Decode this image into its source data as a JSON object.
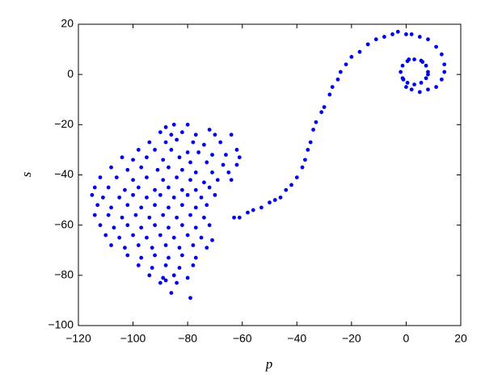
{
  "chart_data": {
    "type": "scatter",
    "x_label": "p",
    "y_label": "s",
    "color": "#0000ee",
    "xlim": [
      -120,
      20
    ],
    "ylim": [
      -100,
      20
    ],
    "xticks": [
      {
        "value": -120,
        "label": "−120"
      },
      {
        "value": -100,
        "label": "−100"
      },
      {
        "value": -80,
        "label": "−80"
      },
      {
        "value": -60,
        "label": "−60"
      },
      {
        "value": -40,
        "label": "−40"
      },
      {
        "value": -20,
        "label": "−20"
      },
      0,
      20
    ],
    "yticks": [
      {
        "value": -100,
        "label": "−100"
      },
      {
        "value": -80,
        "label": "−80"
      },
      {
        "value": -60,
        "label": "−60"
      },
      {
        "value": -40,
        "label": "−40"
      },
      {
        "value": -20,
        "label": "−20"
      },
      0,
      20
    ],
    "x": [
      8,
      7.3,
      5.5,
      3,
      0.5,
      -1.3,
      -2,
      -1.3,
      0.5,
      3,
      5.5,
      7.3,
      6,
      1,
      -1,
      8,
      14,
      14,
      13,
      11,
      8,
      5,
      2,
      0,
      13,
      11,
      8,
      5,
      2,
      0,
      -3,
      -5,
      -8,
      -11,
      -14,
      -17,
      -20,
      -22,
      -24,
      -25,
      -27,
      -28,
      -30,
      -31,
      -33,
      -34,
      -35,
      -36,
      -37,
      -38,
      -40,
      -42,
      -44,
      -46,
      -48,
      -50,
      -53,
      -56,
      -58,
      -61,
      -63,
      -85,
      -80,
      -88,
      -72,
      -90,
      -82,
      -77,
      -70,
      -64,
      -86,
      -94,
      -88,
      -84,
      -78,
      -74,
      -68,
      -62,
      -98,
      -92,
      -86,
      -80,
      -76,
      -71,
      -66,
      -61,
      -104,
      -100,
      -95,
      -89,
      -83,
      -79,
      -73,
      -67,
      -62,
      -108,
      -102,
      -97,
      -91,
      -87,
      -82,
      -77,
      -71,
      -65,
      -112,
      -106,
      -100,
      -95,
      -89,
      -84,
      -79,
      -74,
      -69,
      -64,
      -114,
      -109,
      -103,
      -98,
      -92,
      -87,
      -82,
      -77,
      -72,
      -115,
      -111,
      -105,
      -100,
      -95,
      -90,
      -85,
      -80,
      -75,
      -70,
      -113,
      -108,
      -102,
      -97,
      -92,
      -87,
      -82,
      -77,
      -73,
      -114,
      -109,
      -104,
      -99,
      -94,
      -89,
      -84,
      -79,
      -74,
      -112,
      -107,
      -102,
      -97,
      -92,
      -87,
      -82,
      -77,
      -72,
      -110,
      -105,
      -100,
      -95,
      -90,
      -85,
      -80,
      -75,
      -71,
      -108,
      -103,
      -98,
      -93,
      -88,
      -83,
      -78,
      -73,
      -102,
      -97,
      -92,
      -87,
      -82,
      -77,
      -98,
      -93,
      -88,
      -83,
      -78,
      -94,
      -89,
      -85,
      -80,
      -90,
      -84,
      -88,
      -86,
      -79
    ],
    "y": [
      1,
      3.5,
      5.5,
      6,
      5.3,
      3.5,
      1,
      -1.5,
      -3.3,
      -4,
      -3.3,
      -1.5,
      5,
      6,
      -2,
      0,
      4,
      1,
      -2,
      -5,
      -6,
      -7,
      -6,
      -5,
      8,
      11,
      14,
      15,
      16,
      16,
      17,
      16,
      15,
      14,
      12,
      9,
      7,
      4,
      1,
      -2,
      -5,
      -8,
      -13,
      -15,
      -19,
      -22,
      -27,
      -30,
      -34,
      -37,
      -41,
      -44,
      -46,
      -49,
      -50,
      -51,
      -53,
      -54,
      -55,
      -57,
      -57,
      -20,
      -20,
      -21,
      -22,
      -23,
      -23,
      -24,
      -24,
      -24,
      -24,
      -27,
      -27,
      -26,
      -27,
      -28,
      -27,
      -30,
      -30,
      -30,
      -30,
      -31,
      -31,
      -32,
      -32,
      -33,
      -33,
      -34,
      -33,
      -34,
      -33,
      -35,
      -35,
      -36,
      -36,
      -37,
      -38,
      -37,
      -38,
      -37,
      -38,
      -39,
      -39,
      -39,
      -41,
      -41,
      -42,
      -41,
      -42,
      -41,
      -42,
      -43,
      -42,
      -42,
      -45,
      -45,
      -46,
      -45,
      -46,
      -45,
      -46,
      -46,
      -45,
      -48,
      -49,
      -49,
      -48,
      -49,
      -48,
      -49,
      -48,
      -49,
      -48,
      -52,
      -53,
      -52,
      -53,
      -52,
      -53,
      -52,
      -53,
      -52,
      -56,
      -56,
      -57,
      -56,
      -57,
      -56,
      -57,
      -56,
      -57,
      -60,
      -61,
      -60,
      -61,
      -60,
      -61,
      -60,
      -61,
      -60,
      -64,
      -65,
      -64,
      -65,
      -64,
      -65,
      -64,
      -65,
      -66,
      -68,
      -69,
      -68,
      -69,
      -68,
      -69,
      -68,
      -69,
      -72,
      -73,
      -72,
      -73,
      -72,
      -73,
      -76,
      -77,
      -76,
      -77,
      -76,
      -80,
      -81,
      -80,
      -81,
      -83,
      -83,
      -82,
      -87,
      -89
    ]
  }
}
